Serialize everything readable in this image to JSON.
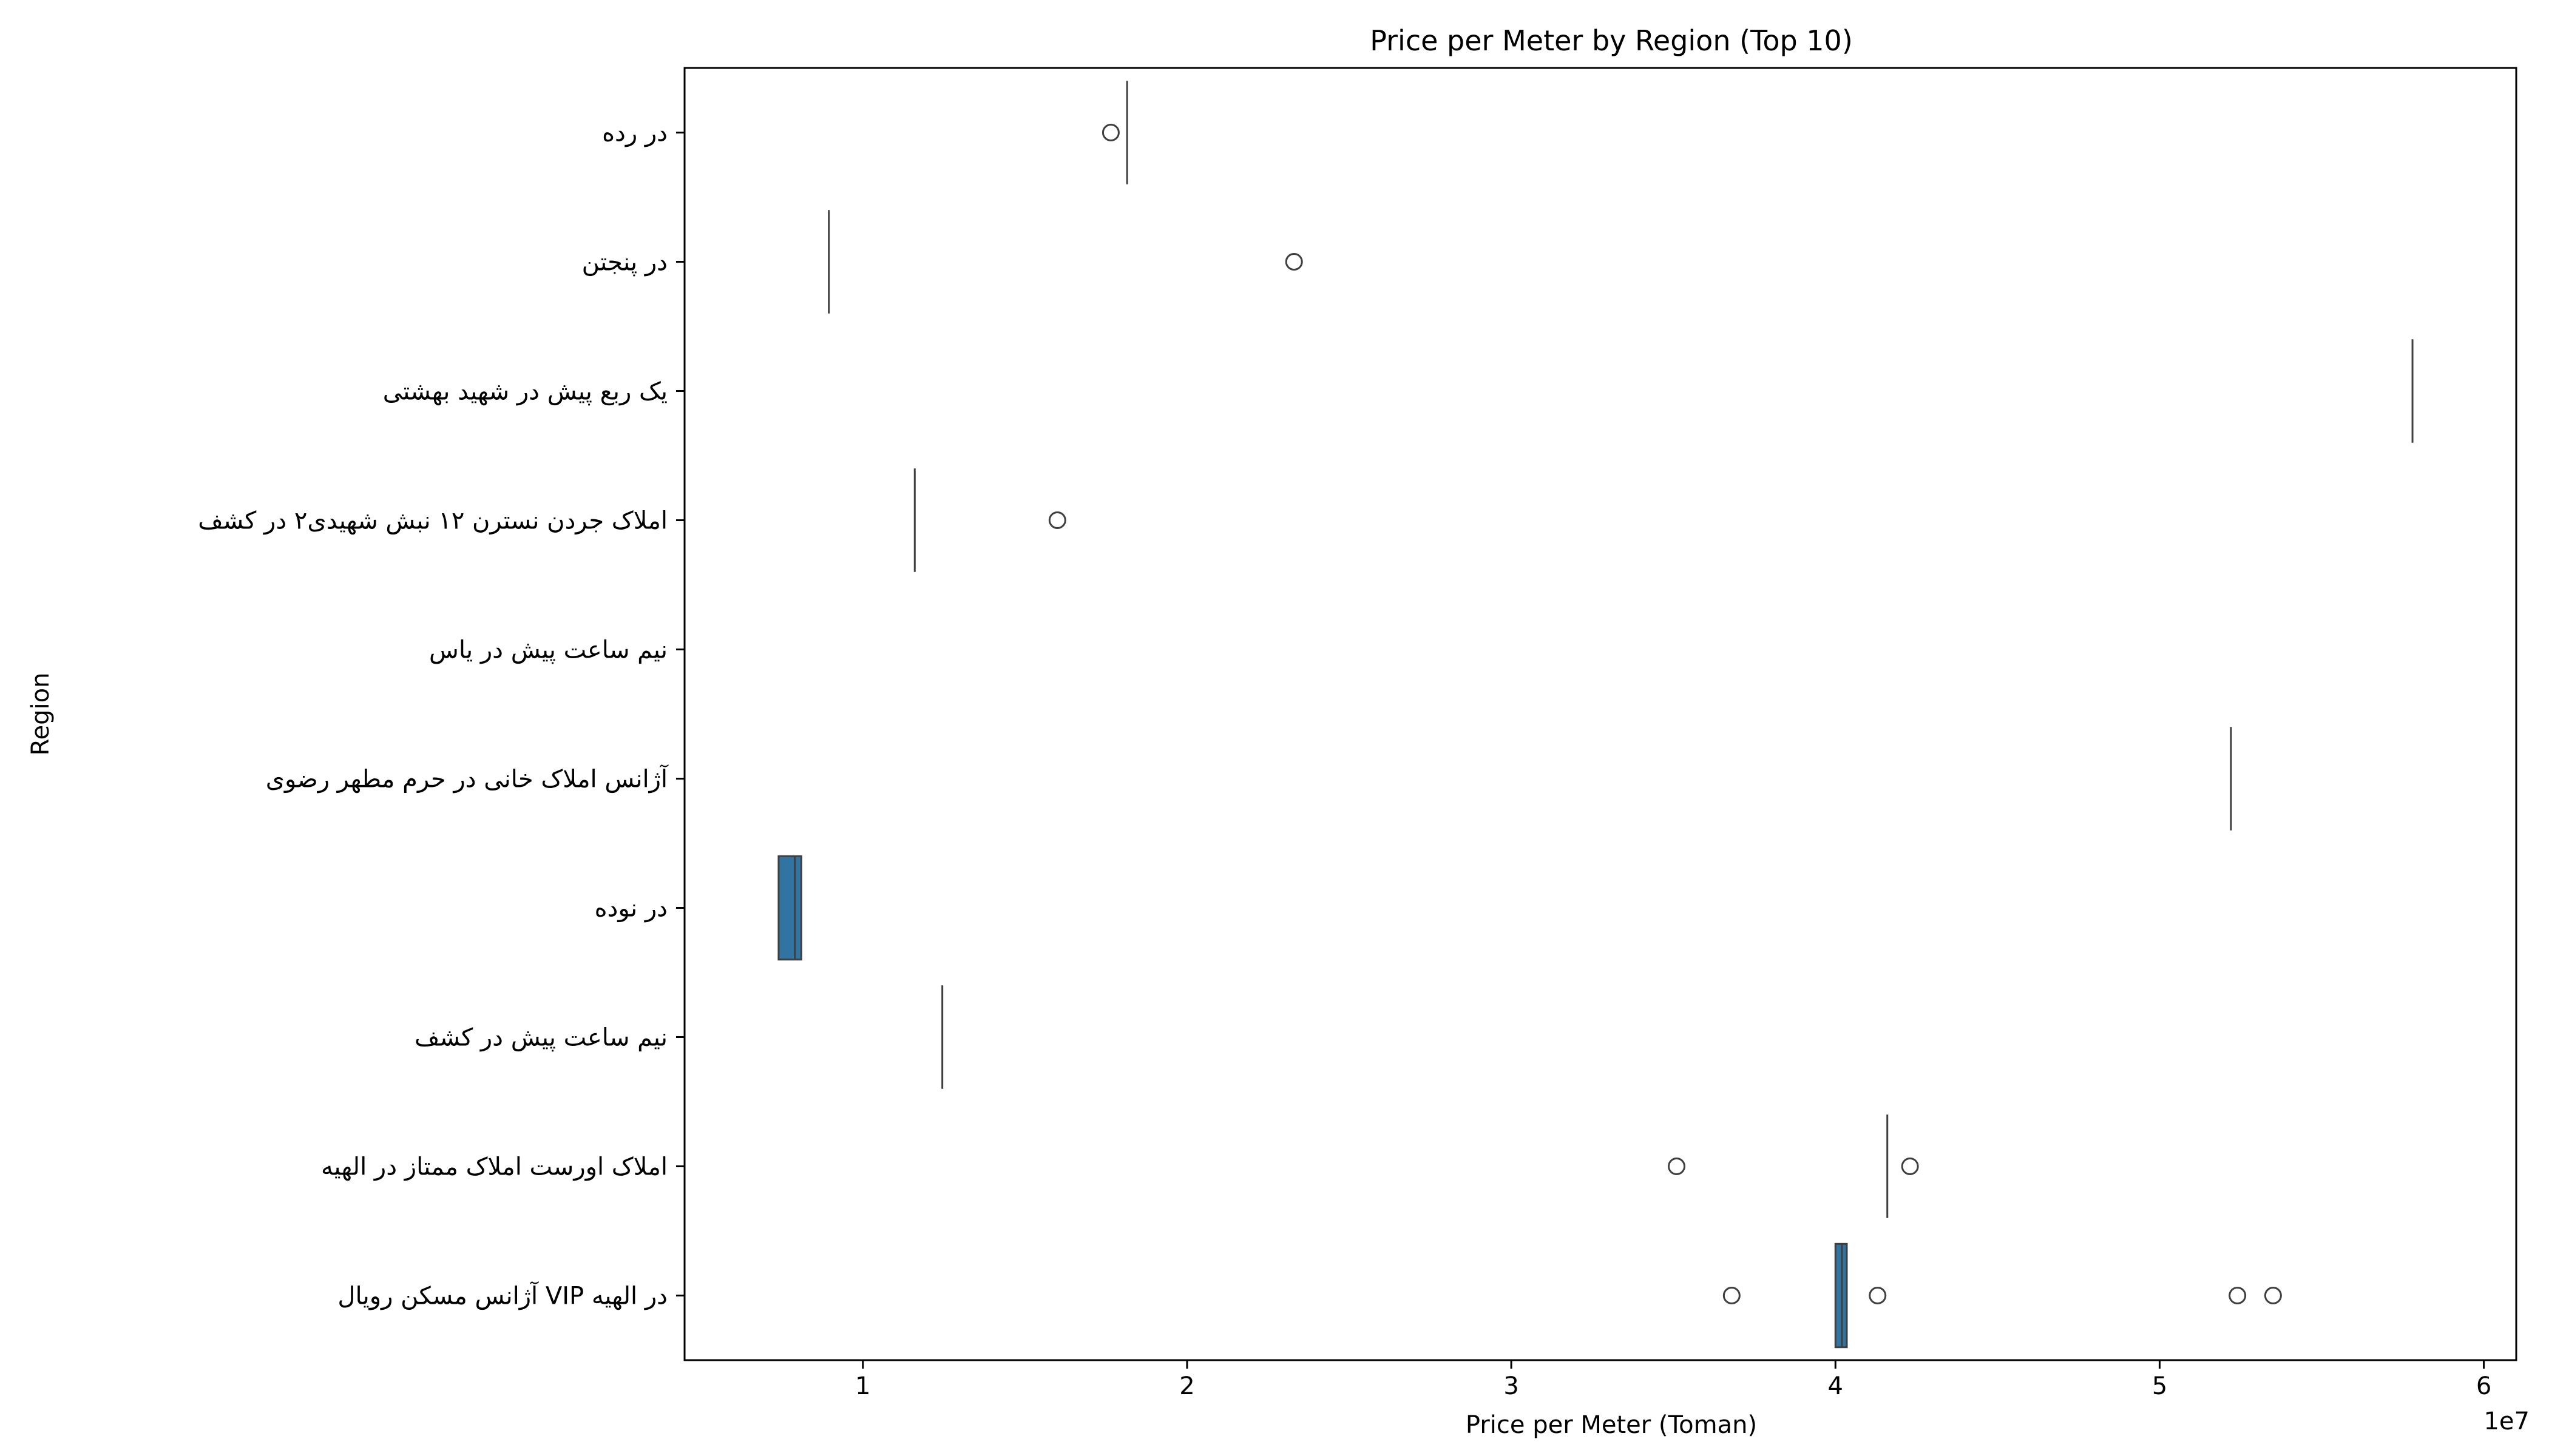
{
  "chart_data": {
    "type": "box",
    "orientation": "horizontal",
    "title": "Price per Meter by Region (Top 10)",
    "xlabel": "Price per Meter (Toman)",
    "ylabel": "Region",
    "x_offset_label": "1e7",
    "xlim": [
      4500000,
      61000000
    ],
    "xticks": [
      10000000,
      20000000,
      30000000,
      40000000,
      50000000,
      60000000
    ],
    "xtick_labels": [
      "1",
      "2",
      "3",
      "4",
      "5",
      "6"
    ],
    "box_color": "#3274a1",
    "grid": false,
    "legend": "none",
    "categories": [
      "در رده",
      "در پنجتن",
      "یک ربع پیش در شهید بهشتی",
      "املاک جردن نسترن ۱۲ نبش شهیدی۲ در کشف",
      "نیم ساعت پیش در یاس",
      "آژانس املاک خانی در حرم مطهر رضوی",
      "در نوده",
      "نیم ساعت پیش در کشف",
      "املاک اورست املاک ممتاز در الهیه",
      "آژانس مسکن رویال VIP در الهیه"
    ],
    "boxes": [
      {
        "category": "در رده",
        "q1": 18150000,
        "median": 18150000,
        "q3": 18150000,
        "whislo": 18150000,
        "whishi": 18150000,
        "fliers": [
          17650000
        ]
      },
      {
        "category": "در پنجتن",
        "q1": 8950000,
        "median": 8950000,
        "q3": 8950000,
        "whislo": 8950000,
        "whishi": 8950000,
        "fliers": [
          23300000
        ]
      },
      {
        "category": "یک ربع پیش در شهید بهشتی",
        "q1": 57800000,
        "median": 57800000,
        "q3": 57800000,
        "whislo": 57800000,
        "whishi": 57800000,
        "fliers": []
      },
      {
        "category": "املاک جردن نسترن ۱۲ نبش شهیدی۲ در کشف",
        "q1": 11600000,
        "median": 11600000,
        "q3": 11600000,
        "whislo": 11600000,
        "whishi": 11600000,
        "fliers": [
          16000000
        ]
      },
      {
        "category": "نیم ساعت پیش در یاس",
        "q1": null,
        "median": null,
        "q3": null,
        "whislo": null,
        "whishi": null,
        "fliers": []
      },
      {
        "category": "آژانس املاک خانی در حرم مطهر رضوی",
        "q1": 52200000,
        "median": 52200000,
        "q3": 52200000,
        "whislo": 52200000,
        "whishi": 52200000,
        "fliers": []
      },
      {
        "category": "در نوده",
        "q1": 7400000,
        "median": 7900000,
        "q3": 8100000,
        "whislo": 7400000,
        "whishi": 8100000,
        "fliers": []
      },
      {
        "category": "نیم ساعت پیش در کشف",
        "q1": 12450000,
        "median": 12450000,
        "q3": 12450000,
        "whislo": 12450000,
        "whishi": 12450000,
        "fliers": []
      },
      {
        "category": "املاک اورست املاک ممتاز در الهیه",
        "q1": 41600000,
        "median": 41600000,
        "q3": 41600000,
        "whislo": 41600000,
        "whishi": 41600000,
        "fliers": [
          35100000,
          42300000
        ]
      },
      {
        "category": "آژانس مسکن رویال VIP در الهیه",
        "q1": 40000000,
        "median": 40200000,
        "q3": 40350000,
        "whislo": 40000000,
        "whishi": 40350000,
        "fliers": [
          36800000,
          41300000,
          52400000,
          53500000
        ]
      }
    ]
  }
}
